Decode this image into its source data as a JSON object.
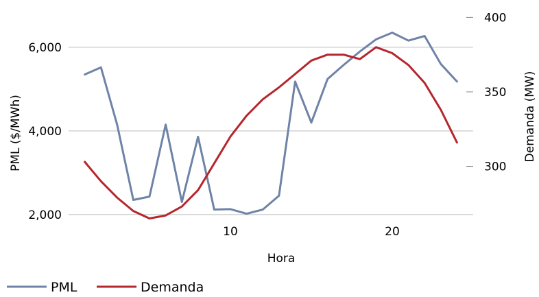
{
  "chart_data": {
    "type": "line",
    "title": "",
    "xlabel": "Hora",
    "ylabel_left": "PML ($/MWh)",
    "ylabel_right": "Demanda (MW)",
    "x": [
      1,
      2,
      3,
      4,
      5,
      6,
      7,
      8,
      9,
      10,
      11,
      12,
      13,
      14,
      15,
      16,
      17,
      18,
      19,
      20,
      21,
      22,
      23,
      24
    ],
    "x_ticks": [
      10,
      20
    ],
    "x_tick_labels": [
      "10",
      "20"
    ],
    "xlim": [
      0,
      25
    ],
    "ylim_left": [
      1800,
      7000
    ],
    "yticks_left": [
      2000,
      4000,
      6000
    ],
    "ytick_labels_left": [
      "2,000",
      "4,000",
      "6,000"
    ],
    "ylim_right": [
      262,
      408
    ],
    "yticks_right": [
      300,
      350,
      400
    ],
    "ytick_labels_right": [
      "300",
      "350",
      "400"
    ],
    "grid": "horizontal",
    "legend_position": "bottom-left",
    "series": [
      {
        "name": "PML",
        "axis": "left",
        "color": "#6e83a6",
        "values": [
          5350,
          5520,
          4150,
          2350,
          2430,
          4150,
          2300,
          3860,
          2120,
          2130,
          2020,
          2120,
          2450,
          5180,
          4200,
          5240,
          5580,
          5900,
          6190,
          6350,
          6160,
          6270,
          5600,
          5180
        ]
      },
      {
        "name": "Demanda",
        "axis": "right",
        "color": "#b5262d",
        "values": [
          303,
          290,
          279,
          270,
          265,
          267,
          273,
          284,
          302,
          320,
          334,
          345,
          353,
          362,
          371,
          375,
          375,
          372,
          380,
          376,
          368,
          356,
          338,
          316
        ]
      }
    ]
  }
}
